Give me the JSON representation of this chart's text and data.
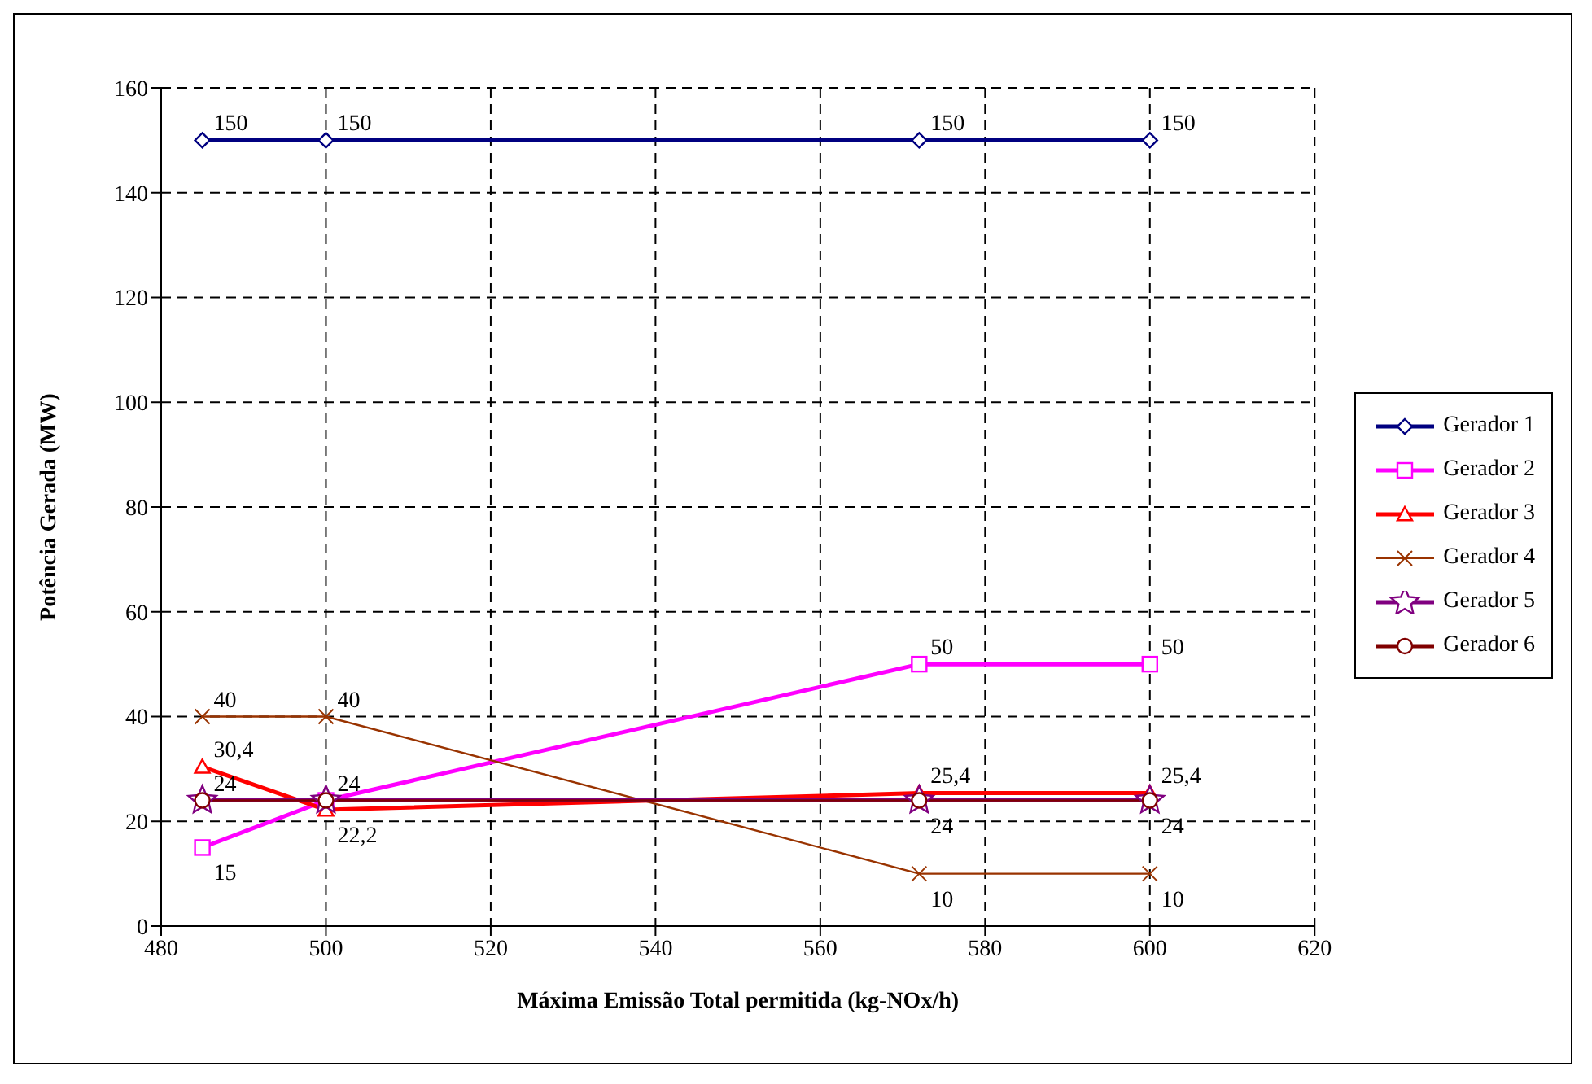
{
  "chart_data": {
    "type": "line",
    "xlabel": "Máxima Emissão Total permitida (kg-NOx/h)",
    "ylabel": "Potência Gerada (MW)",
    "x": [
      485,
      500,
      572,
      600
    ],
    "xlim": [
      480,
      620
    ],
    "xticks": [
      480,
      500,
      520,
      540,
      560,
      580,
      600,
      620
    ],
    "ylim": [
      0,
      160
    ],
    "yticks": [
      0,
      20,
      40,
      60,
      80,
      100,
      120,
      140,
      160
    ],
    "grid": true,
    "legend": "right",
    "line_style": "solid",
    "series": [
      {
        "name": "Gerador 1",
        "color": "#000080",
        "marker": "diamond",
        "values": [
          150,
          150,
          150,
          150
        ],
        "value_labels": [
          "150",
          "150",
          "150",
          "150"
        ]
      },
      {
        "name": "Gerador 2",
        "color": "#ff00ff",
        "marker": "square",
        "values": [
          15,
          24,
          50,
          50
        ],
        "value_labels": [
          "15",
          "24",
          "50",
          "50"
        ]
      },
      {
        "name": "Gerador 3",
        "color": "#ff0000",
        "marker": "triangle",
        "values": [
          30.4,
          22.2,
          25.4,
          25.4
        ],
        "value_labels": [
          "30,4",
          "22,2",
          "25,4",
          "25,4"
        ]
      },
      {
        "name": "Gerador 4",
        "color": "#993300",
        "marker": "cross",
        "values": [
          40,
          40,
          10,
          10
        ],
        "value_labels": [
          "40",
          "40",
          "10",
          "10"
        ]
      },
      {
        "name": "Gerador 5",
        "color": "#800080",
        "marker": "star",
        "values": [
          24,
          24,
          24,
          24
        ],
        "value_labels": [
          "24",
          null,
          "24",
          "24"
        ]
      },
      {
        "name": "Gerador 6",
        "color": "#800000",
        "marker": "circle",
        "values": [
          24,
          24,
          24,
          24
        ]
      }
    ]
  }
}
